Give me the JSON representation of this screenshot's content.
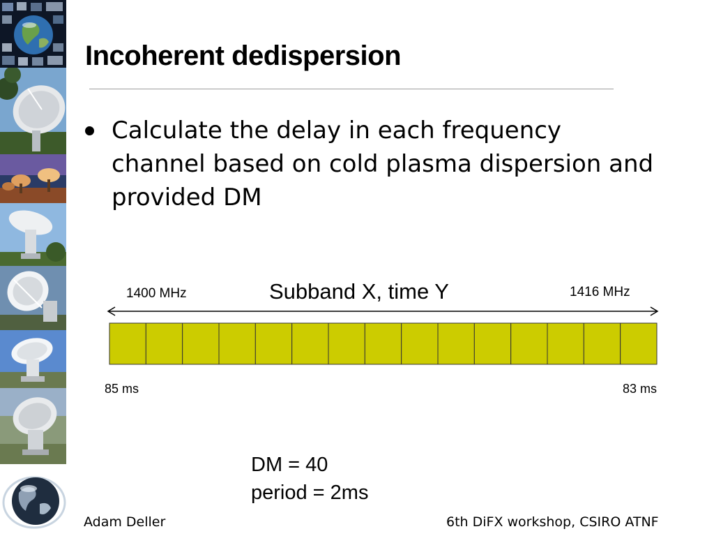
{
  "slide": {
    "title": "Incoherent dedispersion",
    "bullets": [
      "Calculate the delay in each frequency channel based on cold plasma dispersion and provided DM"
    ]
  },
  "diagram": {
    "subband_title": "Subband X, time Y",
    "freq_low_label": "1400 MHz",
    "freq_high_label": "1416 MHz",
    "delay_low_label": "85 ms",
    "delay_high_label": "83 ms",
    "channel_count": 15,
    "channel_color": "#cccc00",
    "dm_text": "DM = 40",
    "period_text": "period = 2ms"
  },
  "footer": {
    "author": "Adam Deller",
    "event": "6th DiFX workshop, CSIRO ATNF"
  },
  "icons": {
    "sidebar": [
      "earth-collage-icon",
      "radio-telescope-icon",
      "telescope-array-icon",
      "radio-telescope-icon",
      "radio-telescope-icon",
      "radio-telescope-icon",
      "radio-telescope-icon"
    ],
    "logo": "globe-logo-icon"
  }
}
